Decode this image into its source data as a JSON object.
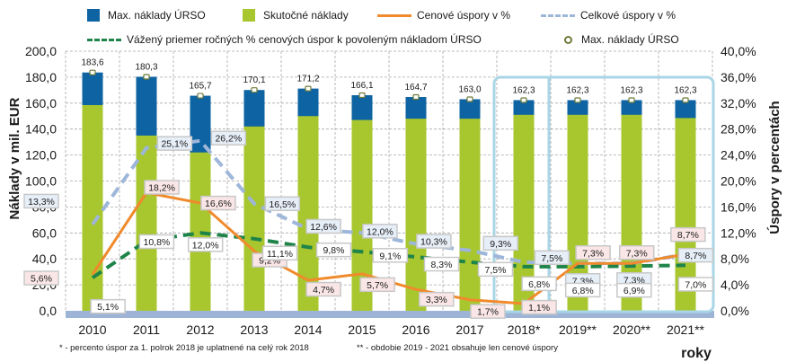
{
  "chart_data": {
    "type": "bar",
    "title": "",
    "categories": [
      "2010",
      "2011",
      "2012",
      "2013",
      "2014",
      "2015",
      "2016",
      "2017",
      "2018*",
      "2019**",
      "2020**",
      "2021**"
    ],
    "ylabel": "Náklady  v mil. EUR",
    "y2label": "Úspory v percentách",
    "xlabel": "roky",
    "ylim": [
      0,
      200
    ],
    "y2lim": [
      0,
      40
    ],
    "yticks": [
      "0,0",
      "20,0",
      "40,0",
      "60,0",
      "80,0",
      "100,0",
      "120,0",
      "140,0",
      "160,0",
      "180,0",
      "200,0"
    ],
    "y2ticks": [
      "0,0%",
      "4,0%",
      "8,0%",
      "12,0%",
      "16,0%",
      "20,0%",
      "24,0%",
      "28,0%",
      "32,0%",
      "36,0%",
      "40,0%"
    ],
    "grid": true,
    "legend_position": "top",
    "highlight_groups": [
      [
        "2018*"
      ],
      [
        "2019**",
        "2020**",
        "2021**"
      ]
    ],
    "series": [
      {
        "name": "Max. náklady ÚRSO",
        "kind": "bar-total",
        "axis": "left",
        "color": "#0e63a3",
        "values": [
          183.6,
          180.3,
          165.7,
          170.1,
          171.2,
          166.1,
          164.7,
          163.0,
          162.3,
          162.3,
          162.3,
          162.3
        ],
        "labels": [
          "183,6",
          "180,3",
          "165,7",
          "170,1",
          "171,2",
          "166,1",
          "164,7",
          "163,0",
          "162,3",
          "162,3",
          "162,3",
          "162,3"
        ]
      },
      {
        "name": "Skutočné náklady",
        "kind": "bar",
        "axis": "left",
        "color": "#a8c62e",
        "values": [
          158.5,
          135.0,
          122.0,
          142.0,
          150.0,
          147.0,
          148.0,
          148.0,
          151.0,
          151.0,
          151.0,
          148.5
        ]
      },
      {
        "name": "Cenové úspory v %",
        "kind": "line",
        "axis": "right",
        "color": "#f08a2c",
        "values": [
          5.6,
          18.2,
          16.6,
          9.2,
          4.7,
          5.7,
          3.3,
          1.7,
          1.1,
          7.3,
          7.3,
          8.7
        ],
        "labels": [
          "5,6%",
          "18,2%",
          "16,6%",
          "9,2%",
          "4,7%",
          "5,7%",
          "3,3%",
          "1,7%",
          "1,1%",
          "7,3%",
          "7,3%",
          "8,7%"
        ]
      },
      {
        "name": "Celkové úspory v %",
        "kind": "line-dashed",
        "axis": "right",
        "color": "#9db6da",
        "values": [
          13.3,
          25.1,
          26.2,
          16.5,
          12.6,
          12.0,
          10.3,
          9.3,
          7.5,
          7.3,
          7.3,
          8.7
        ],
        "labels": [
          "13,3%",
          "25,1%",
          "26,2%",
          "16,5%",
          "12,6%",
          "12,0%",
          "10,3%",
          "9,3%",
          "7,5%",
          "7,3%",
          "7,3%",
          "8,7%"
        ]
      },
      {
        "name": "Vážený priemer ročných % cenových úspor k povoleným nákladom ÚRSO",
        "kind": "line-dashed",
        "axis": "right",
        "color": "#1e8449",
        "values": [
          5.1,
          10.8,
          12.0,
          11.1,
          9.8,
          9.1,
          8.3,
          7.5,
          6.8,
          6.8,
          6.9,
          7.0
        ],
        "labels": [
          "5,1%",
          "10,8%",
          "12,0%",
          "11,1%",
          "9,8%",
          "9,1%",
          "8,3%",
          "7,5%",
          "6,8%",
          "6,8%",
          "6,9%",
          "7,0%"
        ]
      },
      {
        "name": "Max. náklady ÚRSO",
        "kind": "marker",
        "axis": "left",
        "color": "#6f7b3a"
      }
    ]
  },
  "legend": {
    "max_naklady": "Max. náklady ÚRSO",
    "skutocne": "Skutočné náklady",
    "cenove": "Cenové úspory v %",
    "celkove": "Celkové úspory v %",
    "vazeny": "Vážený priemer ročných % cenových úspor k povoleným nákladom ÚRSO",
    "max_marker": "Max. náklady ÚRSO"
  },
  "footnotes": {
    "note1": "*  -  percento úspor za 1. polrok 2018 je uplatnené na celý rok 2018",
    "note2": "** -  obdobie 2019 - 2021 obsahuje len cenové úspory"
  }
}
